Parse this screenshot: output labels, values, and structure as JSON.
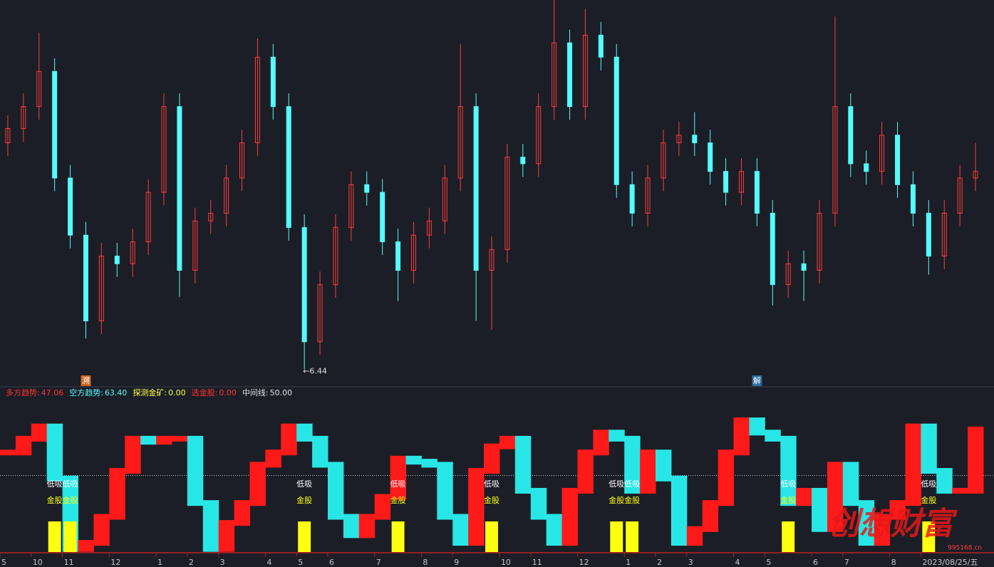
{
  "chart_data": [
    {
      "type": "candlestick",
      "open": [
        8.5,
        8.63,
        8.83,
        9.15,
        8.18,
        7.66,
        6.88,
        7.47,
        7.4,
        7.6,
        8.05,
        8.83,
        7.34,
        7.79,
        7.86,
        8.18,
        8.5,
        9.28,
        8.83,
        7.73,
        6.69,
        7.21,
        7.73,
        8.12,
        8.05,
        7.6,
        7.34,
        7.66,
        7.79,
        8.18,
        8.83,
        7.34,
        7.53,
        8.37,
        8.31,
        8.83,
        9.41,
        8.83,
        9.48,
        9.28,
        8.12,
        7.86,
        8.18,
        8.5,
        8.57,
        8.5,
        8.24,
        8.05,
        8.24,
        7.86,
        7.21,
        7.4,
        7.34,
        7.86,
        8.83,
        8.31,
        8.24,
        8.57,
        8.12,
        7.86,
        7.47,
        7.86,
        8.18
      ],
      "high": [
        8.75,
        8.95,
        9.5,
        9.27,
        8.3,
        7.78,
        7.59,
        7.59,
        7.72,
        8.17,
        8.95,
        8.95,
        7.91,
        7.98,
        8.3,
        8.62,
        9.45,
        9.4,
        8.95,
        7.85,
        7.33,
        7.85,
        8.24,
        8.24,
        8.17,
        7.72,
        7.78,
        7.91,
        8.3,
        9.4,
        8.95,
        7.65,
        8.49,
        8.49,
        8.95,
        9.8,
        9.53,
        9.72,
        9.6,
        9.4,
        8.24,
        8.3,
        8.62,
        8.69,
        8.78,
        8.62,
        8.36,
        8.36,
        8.36,
        7.98,
        7.52,
        7.52,
        7.98,
        9.65,
        8.95,
        8.43,
        8.69,
        8.69,
        8.24,
        7.98,
        7.98,
        8.3,
        8.5
      ],
      "low": [
        8.38,
        8.51,
        8.71,
        8.06,
        7.54,
        6.72,
        6.76,
        7.28,
        7.28,
        7.48,
        7.93,
        7.1,
        7.22,
        7.67,
        7.74,
        8.06,
        8.38,
        8.71,
        7.61,
        6.44,
        6.57,
        7.09,
        7.61,
        7.93,
        7.48,
        7.06,
        7.22,
        7.54,
        7.67,
        8.06,
        6.88,
        6.8,
        7.41,
        8.19,
        8.19,
        8.71,
        8.71,
        8.71,
        9.16,
        8.0,
        7.74,
        7.74,
        8.06,
        8.38,
        8.38,
        8.12,
        7.93,
        7.93,
        7.74,
        7.02,
        7.09,
        7.06,
        7.22,
        7.74,
        8.19,
        8.12,
        8.12,
        8.0,
        7.74,
        7.3,
        7.35,
        7.74,
        8.06
      ],
      "close": [
        8.63,
        8.83,
        9.15,
        8.18,
        7.66,
        6.88,
        7.47,
        7.4,
        7.6,
        8.05,
        8.83,
        7.34,
        7.79,
        7.86,
        8.18,
        8.5,
        9.28,
        8.83,
        7.73,
        6.69,
        7.21,
        7.73,
        8.12,
        8.05,
        7.6,
        7.34,
        7.66,
        7.79,
        8.18,
        8.83,
        7.34,
        7.53,
        8.37,
        8.31,
        8.83,
        9.41,
        8.83,
        9.48,
        9.28,
        8.12,
        7.86,
        8.18,
        8.5,
        8.57,
        8.5,
        8.24,
        8.05,
        8.24,
        7.86,
        7.21,
        7.4,
        7.34,
        7.86,
        8.83,
        8.31,
        8.24,
        8.57,
        8.12,
        7.86,
        7.47,
        7.86,
        8.18,
        8.24
      ],
      "up_color": "#ff3c3c",
      "down_color": "#54fcfc",
      "ylim": [
        6.3,
        9.8
      ],
      "low_label": {
        "value": 6.44,
        "label": "←6.44",
        "index": 19
      },
      "events": [
        null,
        null,
        null,
        null,
        null,
        "溯",
        null,
        null,
        null,
        null,
        null,
        null,
        null,
        null,
        null,
        null,
        null,
        null,
        null,
        null,
        null,
        null,
        null,
        null,
        null,
        null,
        null,
        null,
        null,
        null,
        null,
        null,
        null,
        null,
        null,
        null,
        null,
        null,
        null,
        null,
        null,
        null,
        null,
        null,
        null,
        null,
        null,
        null,
        "解",
        null,
        null,
        null,
        null,
        null,
        null,
        null,
        null,
        null,
        null,
        null,
        null,
        null,
        null
      ]
    },
    {
      "type": "indicator",
      "legend": [
        {
          "label": "多方趋势:",
          "value": 47.06,
          "value_label": "47.06",
          "color": "#ff3030"
        },
        {
          "label": "空方趋势:",
          "value": 63.4,
          "value_label": "63.40",
          "color": "#54fcfc"
        },
        {
          "label": "探测金矿:",
          "value": 0,
          "value_label": "0.00",
          "color": "#ffff40"
        },
        {
          "label": "选金股:",
          "value": 0,
          "value_label": "0.00",
          "color": "#ff3030"
        },
        {
          "label": "中间线:",
          "value": 50,
          "value_label": "50.00",
          "color": "#e0e0e0"
        }
      ],
      "values": [
        65,
        74,
        82,
        48,
        2,
        6,
        23,
        53,
        74,
        72,
        74,
        74,
        32,
        2,
        19,
        32,
        57,
        65,
        82,
        74,
        57,
        23,
        11,
        23,
        36,
        61,
        59,
        57,
        23,
        6,
        53,
        69,
        74,
        40,
        23,
        6,
        40,
        65,
        78,
        74,
        40,
        65,
        48,
        6,
        15,
        32,
        65,
        86,
        78,
        74,
        32,
        40,
        15,
        57,
        32,
        6,
        23,
        32,
        82,
        53,
        40,
        40,
        80
      ],
      "up_color": "#ff1a1a",
      "down_color": "#28e6e6",
      "gold_color": "#ffff10",
      "gold": [
        null,
        null,
        null,
        20,
        20,
        null,
        null,
        null,
        null,
        null,
        null,
        null,
        null,
        null,
        null,
        null,
        null,
        null,
        null,
        20,
        null,
        null,
        null,
        null,
        null,
        20,
        null,
        null,
        null,
        null,
        null,
        20,
        null,
        null,
        null,
        null,
        null,
        null,
        null,
        20,
        20,
        null,
        null,
        null,
        null,
        null,
        null,
        null,
        null,
        null,
        20,
        null,
        null,
        null,
        null,
        null,
        null,
        null,
        null,
        20,
        null,
        null,
        null
      ],
      "signal_labels": [
        "低吸",
        "金股"
      ],
      "ylim": [
        0,
        100
      ],
      "x_labels": [
        "5",
        null,
        "10",
        null,
        "11",
        null,
        null,
        "12",
        null,
        null,
        "1",
        null,
        "2",
        null,
        "3",
        null,
        null,
        "4",
        null,
        "5",
        null,
        "6",
        null,
        null,
        "7",
        null,
        null,
        "8",
        null,
        "9",
        null,
        null,
        "10",
        null,
        "11",
        null,
        null,
        "12",
        null,
        null,
        "1",
        null,
        "2",
        null,
        "3",
        null,
        null,
        "4",
        null,
        "5",
        null,
        null,
        "6",
        null,
        "7",
        null,
        null,
        "8",
        null,
        "2023/08/25/五",
        null,
        null,
        null
      ]
    }
  ],
  "watermark": {
    "title": "创想财富",
    "site": "995168.cn"
  }
}
